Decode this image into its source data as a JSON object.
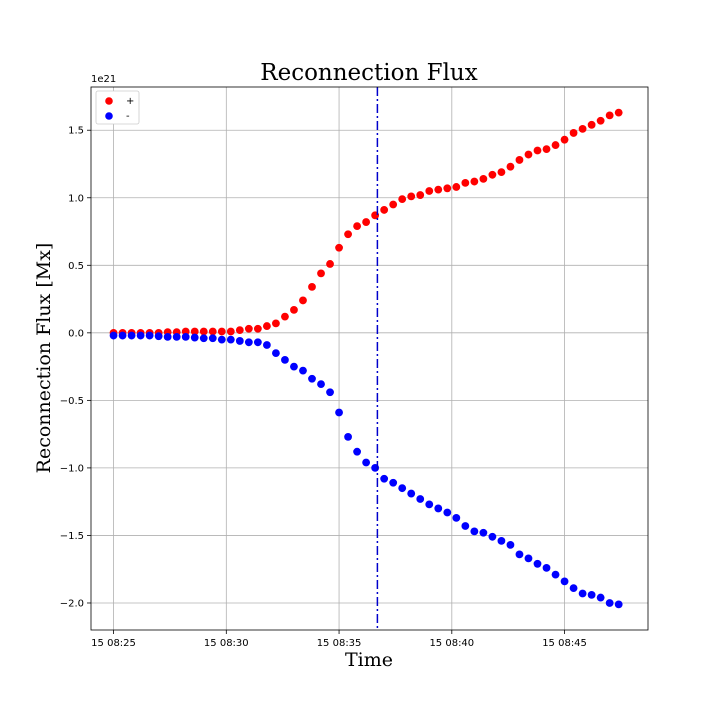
{
  "chart_data": {
    "type": "scatter",
    "title": "Reconnection Flux",
    "xlabel": "Time",
    "ylabel": "Reconnection Flux [Mx]",
    "y_offset_label": "1e21",
    "y_unit_multiplier": 1e+21,
    "grid": true,
    "legend_position": "top-left",
    "x_unit": "minutes past 08:00 on day 15",
    "xlim": [
      24.0,
      48.7
    ],
    "ylim": [
      -2.2,
      1.82
    ],
    "x_ticks": [
      {
        "value": 25,
        "label": "15 08:25"
      },
      {
        "value": 30,
        "label": "15 08:30"
      },
      {
        "value": 35,
        "label": "15 08:35"
      },
      {
        "value": 40,
        "label": "15 08:40"
      },
      {
        "value": 45,
        "label": "15 08:45"
      }
    ],
    "y_ticks": [
      {
        "value": -2.0,
        "label": "−2.0"
      },
      {
        "value": -1.5,
        "label": "−1.5"
      },
      {
        "value": -1.0,
        "label": "−1.0"
      },
      {
        "value": -0.5,
        "label": "−0.5"
      },
      {
        "value": 0.0,
        "label": "0.0"
      },
      {
        "value": 0.5,
        "label": "0.5"
      },
      {
        "value": 1.0,
        "label": "1.0"
      },
      {
        "value": 1.5,
        "label": "1.5"
      }
    ],
    "vertical_line": {
      "x": 36.7,
      "color": "#0000cc",
      "style": "dashdot"
    },
    "x": [
      25.0,
      25.4,
      25.8,
      26.2,
      26.6,
      27.0,
      27.4,
      27.8,
      28.2,
      28.6,
      29.0,
      29.4,
      29.8,
      30.2,
      30.6,
      31.0,
      31.4,
      31.8,
      32.2,
      32.6,
      33.0,
      33.4,
      33.8,
      34.2,
      34.6,
      35.0,
      35.4,
      35.8,
      36.2,
      36.6,
      37.0,
      37.4,
      37.8,
      38.2,
      38.6,
      39.0,
      39.4,
      39.8,
      40.2,
      40.6,
      41.0,
      41.4,
      41.8,
      42.2,
      42.6,
      43.0,
      43.4,
      43.8,
      44.2,
      44.6,
      45.0,
      45.4,
      45.8,
      46.2,
      46.6,
      47.0,
      47.4
    ],
    "series": [
      {
        "name": "+",
        "color": "#ff0000",
        "values": [
          0.0,
          0.0,
          0.0,
          0.0,
          0.0,
          0.0,
          0.005,
          0.005,
          0.01,
          0.01,
          0.01,
          0.01,
          0.01,
          0.01,
          0.02,
          0.03,
          0.03,
          0.05,
          0.07,
          0.12,
          0.17,
          0.24,
          0.34,
          0.44,
          0.51,
          0.63,
          0.73,
          0.79,
          0.82,
          0.87,
          0.91,
          0.95,
          0.99,
          1.01,
          1.02,
          1.05,
          1.06,
          1.07,
          1.08,
          1.11,
          1.12,
          1.14,
          1.17,
          1.19,
          1.23,
          1.28,
          1.32,
          1.35,
          1.36,
          1.39,
          1.43,
          1.48,
          1.51,
          1.54,
          1.57,
          1.61,
          1.63
        ]
      },
      {
        "name": "-",
        "color": "#0000ff",
        "values": [
          -0.02,
          -0.02,
          -0.02,
          -0.02,
          -0.02,
          -0.025,
          -0.03,
          -0.03,
          -0.03,
          -0.035,
          -0.04,
          -0.04,
          -0.05,
          -0.05,
          -0.06,
          -0.07,
          -0.07,
          -0.09,
          -0.15,
          -0.2,
          -0.25,
          -0.28,
          -0.34,
          -0.38,
          -0.44,
          -0.59,
          -0.77,
          -0.88,
          -0.96,
          -1.0,
          -1.08,
          -1.11,
          -1.15,
          -1.19,
          -1.23,
          -1.27,
          -1.3,
          -1.33,
          -1.37,
          -1.43,
          -1.47,
          -1.48,
          -1.51,
          -1.54,
          -1.57,
          -1.64,
          -1.67,
          -1.71,
          -1.74,
          -1.79,
          -1.84,
          -1.89,
          -1.93,
          -1.94,
          -1.96,
          -2.0,
          -2.01
        ]
      }
    ]
  }
}
